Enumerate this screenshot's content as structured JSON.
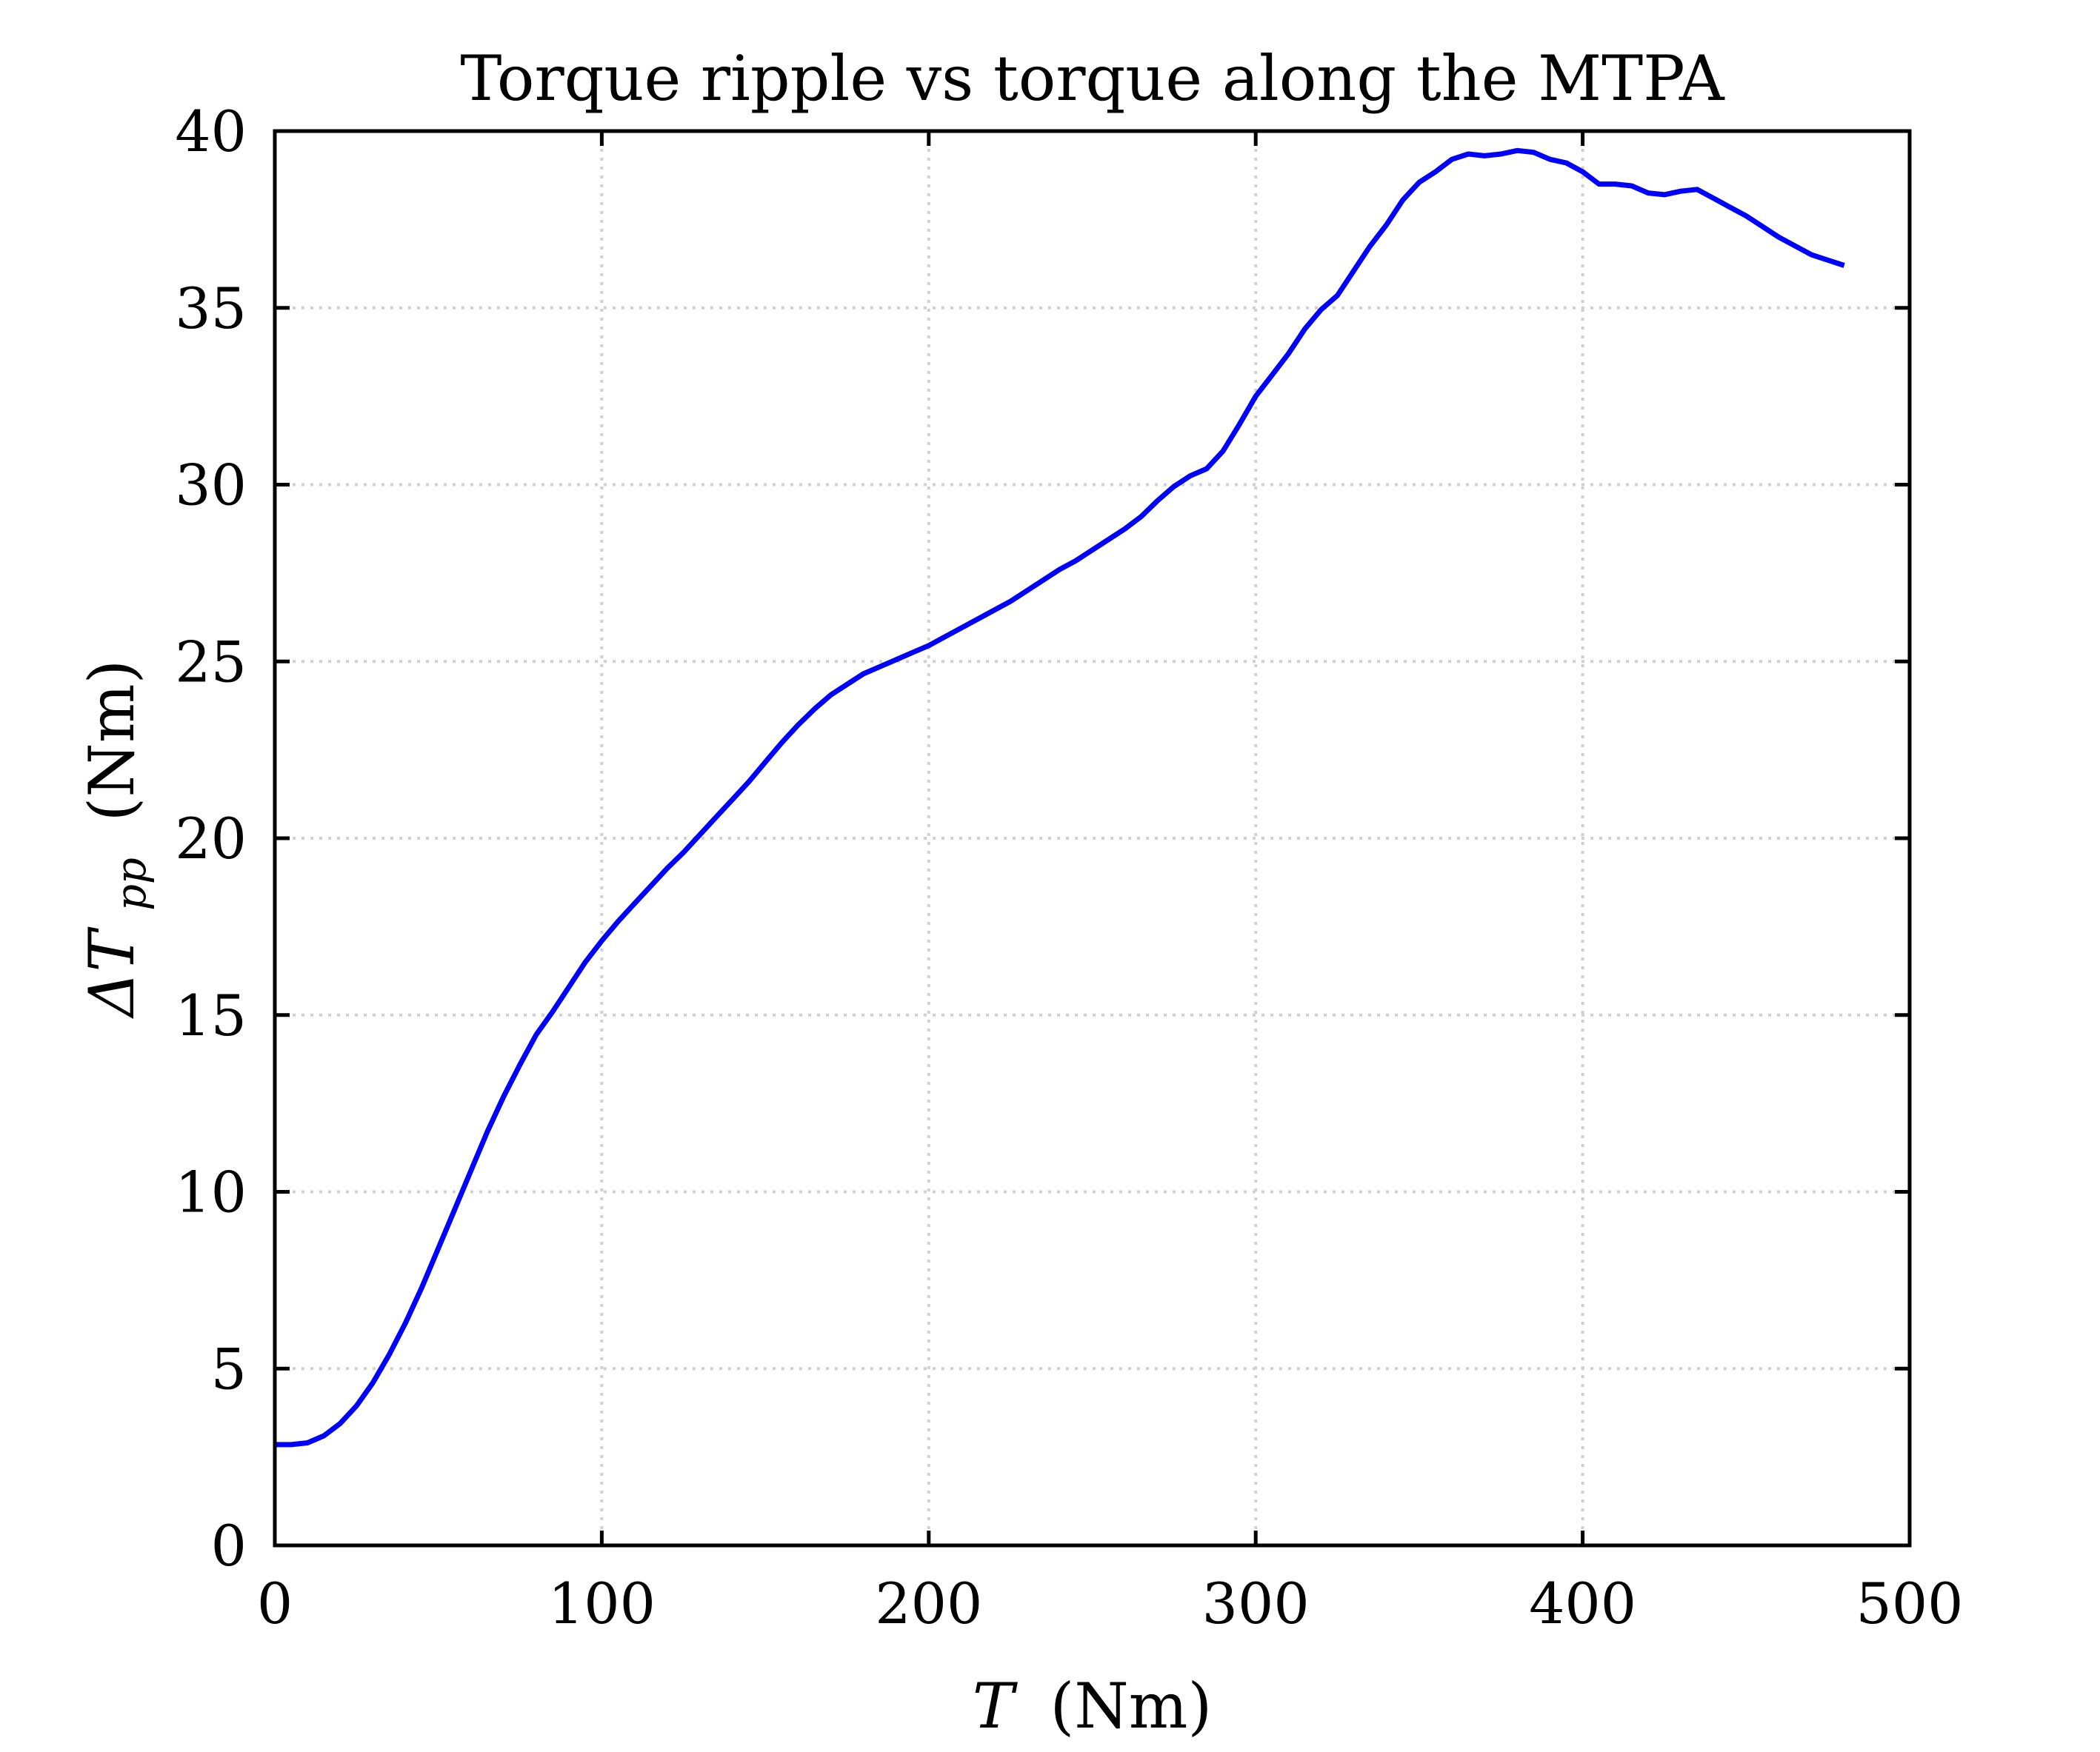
{
  "chart_data": {
    "type": "line",
    "title": "Torque ripple vs torque along the MTPA",
    "xlabel": {
      "symbol": "T",
      "unit": "(Nm)"
    },
    "ylabel": {
      "symbol": "ΔT",
      "subscript": "pp",
      "unit": "(Nm)"
    },
    "xlim": [
      0,
      500
    ],
    "ylim": [
      0,
      40
    ],
    "xticks": [
      0,
      100,
      200,
      300,
      400,
      500
    ],
    "yticks": [
      0,
      5,
      10,
      15,
      20,
      25,
      30,
      35,
      40
    ],
    "grid": true,
    "series": [
      {
        "color": "#0000ff",
        "points": [
          [
            0,
            2.85
          ],
          [
            5,
            2.85
          ],
          [
            10,
            2.9
          ],
          [
            15,
            3.1
          ],
          [
            20,
            3.45
          ],
          [
            25,
            3.95
          ],
          [
            30,
            4.6
          ],
          [
            35,
            5.4
          ],
          [
            40,
            6.3
          ],
          [
            45,
            7.3
          ],
          [
            50,
            8.4
          ],
          [
            55,
            9.5
          ],
          [
            60,
            10.6
          ],
          [
            65,
            11.7
          ],
          [
            70,
            12.7
          ],
          [
            75,
            13.6
          ],
          [
            80,
            14.45
          ],
          [
            85,
            15.1
          ],
          [
            90,
            15.8
          ],
          [
            95,
            16.5
          ],
          [
            100,
            17.1
          ],
          [
            105,
            17.65
          ],
          [
            110,
            18.15
          ],
          [
            115,
            18.65
          ],
          [
            120,
            19.15
          ],
          [
            125,
            19.6
          ],
          [
            130,
            20.1
          ],
          [
            135,
            20.6
          ],
          [
            140,
            21.1
          ],
          [
            145,
            21.6
          ],
          [
            150,
            22.15
          ],
          [
            155,
            22.7
          ],
          [
            160,
            23.2
          ],
          [
            165,
            23.65
          ],
          [
            170,
            24.05
          ],
          [
            175,
            24.35
          ],
          [
            180,
            24.65
          ],
          [
            185,
            24.85
          ],
          [
            190,
            25.05
          ],
          [
            195,
            25.25
          ],
          [
            200,
            25.45
          ],
          [
            205,
            25.7
          ],
          [
            210,
            25.95
          ],
          [
            215,
            26.2
          ],
          [
            220,
            26.45
          ],
          [
            225,
            26.7
          ],
          [
            230,
            27.0
          ],
          [
            235,
            27.3
          ],
          [
            240,
            27.6
          ],
          [
            245,
            27.85
          ],
          [
            250,
            28.15
          ],
          [
            255,
            28.45
          ],
          [
            260,
            28.75
          ],
          [
            265,
            29.1
          ],
          [
            270,
            29.55
          ],
          [
            275,
            29.95
          ],
          [
            280,
            30.25
          ],
          [
            285,
            30.45
          ],
          [
            290,
            30.95
          ],
          [
            295,
            31.7
          ],
          [
            300,
            32.5
          ],
          [
            305,
            33.1
          ],
          [
            310,
            33.7
          ],
          [
            315,
            34.4
          ],
          [
            320,
            34.95
          ],
          [
            325,
            35.35
          ],
          [
            330,
            36.05
          ],
          [
            335,
            36.75
          ],
          [
            340,
            37.35
          ],
          [
            345,
            38.05
          ],
          [
            350,
            38.55
          ],
          [
            355,
            38.85
          ],
          [
            360,
            39.2
          ],
          [
            365,
            39.35
          ],
          [
            370,
            39.3
          ],
          [
            375,
            39.35
          ],
          [
            380,
            39.45
          ],
          [
            385,
            39.4
          ],
          [
            390,
            39.2
          ],
          [
            395,
            39.1
          ],
          [
            400,
            38.85
          ],
          [
            405,
            38.5
          ],
          [
            410,
            38.5
          ],
          [
            415,
            38.45
          ],
          [
            420,
            38.25
          ],
          [
            425,
            38.2
          ],
          [
            430,
            38.3
          ],
          [
            435,
            38.35
          ],
          [
            440,
            38.1
          ],
          [
            445,
            37.85
          ],
          [
            450,
            37.6
          ],
          [
            455,
            37.3
          ],
          [
            460,
            37.0
          ],
          [
            465,
            36.75
          ],
          [
            470,
            36.5
          ],
          [
            475,
            36.35
          ],
          [
            480,
            36.2
          ]
        ]
      }
    ]
  }
}
